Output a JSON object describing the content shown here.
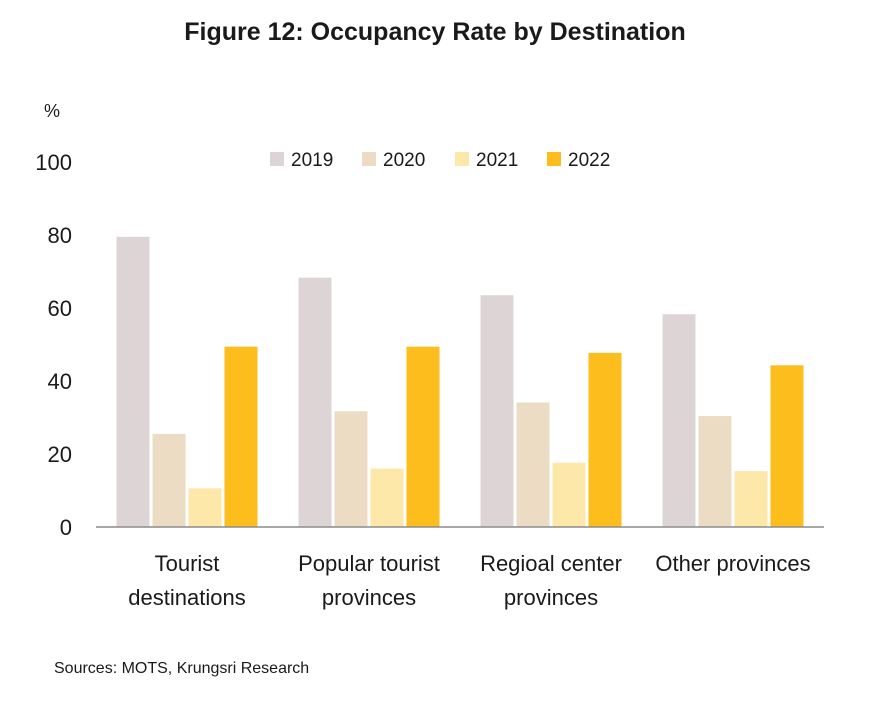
{
  "chart_data": {
    "type": "bar",
    "title": "Figure 12: Occupancy Rate by Destination",
    "ylabel": "%",
    "xlabel": "",
    "ylim": [
      0,
      100
    ],
    "yticks": [
      0,
      20,
      40,
      60,
      80,
      100
    ],
    "legend_position": "top-center",
    "grid": false,
    "categories": [
      [
        "Tourist",
        "destinations"
      ],
      [
        "Popular tourist",
        "provinces"
      ],
      [
        "Regioal center",
        "provinces"
      ],
      [
        "Other provinces"
      ]
    ],
    "series": [
      {
        "name": "2019",
        "color": "#ddd5d5",
        "values": [
          79.5,
          68.3,
          63.5,
          58.3
        ]
      },
      {
        "name": "2020",
        "color": "#ecdcc3",
        "values": [
          25.5,
          31.7,
          34.1,
          30.4
        ]
      },
      {
        "name": "2021",
        "color": "#fde7a9",
        "values": [
          10.6,
          16.0,
          17.6,
          15.3
        ]
      },
      {
        "name": "2022",
        "color": "#fdbd1c",
        "values": [
          49.4,
          49.4,
          47.7,
          44.3
        ]
      }
    ]
  },
  "source": "Sources: MOTS, Krungsri Research"
}
